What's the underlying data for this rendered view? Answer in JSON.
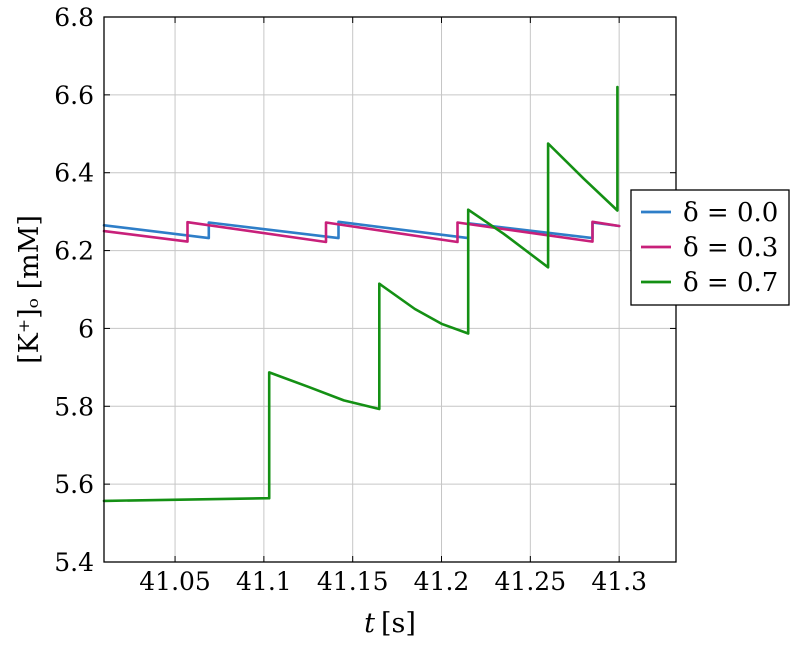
{
  "chart_data": {
    "type": "line",
    "xlabel_italic": "t",
    "xlabel_unit": "[s]",
    "ylabel": "[K⁺]ₒ [mM]",
    "xlim": [
      41.01,
      41.332
    ],
    "ylim": [
      5.4,
      6.8
    ],
    "xticks": [
      41.05,
      41.1,
      41.15,
      41.2,
      41.25,
      41.3
    ],
    "xtick_labels": [
      "41.05",
      "41.1",
      "41.15",
      "41.2",
      "41.25",
      "41.3"
    ],
    "yticks": [
      5.4,
      5.6,
      5.8,
      6.0,
      6.2,
      6.4,
      6.6,
      6.8
    ],
    "ytick_labels": [
      "5.4",
      "5.6",
      "5.8",
      "6",
      "6.2",
      "6.4",
      "6.6",
      "6.8"
    ],
    "grid": true,
    "legend_position": "right (outside, middle)",
    "series": [
      {
        "name": "δ = 0.0",
        "color": "#2e7ec8",
        "x": [
          41.01,
          41.069,
          41.069,
          41.142,
          41.142,
          41.215,
          41.215,
          41.285,
          41.285,
          41.3
        ],
        "y": [
          6.265,
          6.232,
          6.272,
          6.232,
          6.274,
          6.232,
          6.27,
          6.232,
          6.272,
          6.263
        ]
      },
      {
        "name": "δ = 0.3",
        "color": "#c8207a",
        "x": [
          41.01,
          41.057,
          41.057,
          41.135,
          41.135,
          41.209,
          41.209,
          41.285,
          41.285,
          41.3
        ],
        "y": [
          6.25,
          6.223,
          6.273,
          6.222,
          6.272,
          6.222,
          6.272,
          6.223,
          6.274,
          6.263
        ]
      },
      {
        "name": "δ = 0.7",
        "color": "#149014",
        "x": [
          41.01,
          41.103,
          41.103,
          41.125,
          41.145,
          41.165,
          41.165,
          41.185,
          41.2,
          41.215,
          41.215,
          41.235,
          41.26,
          41.26,
          41.28,
          41.299,
          41.299
        ],
        "y": [
          5.557,
          5.564,
          5.887,
          5.85,
          5.815,
          5.793,
          6.115,
          6.05,
          6.012,
          5.987,
          6.305,
          6.243,
          6.157,
          6.475,
          6.385,
          6.303,
          6.62
        ]
      }
    ]
  }
}
